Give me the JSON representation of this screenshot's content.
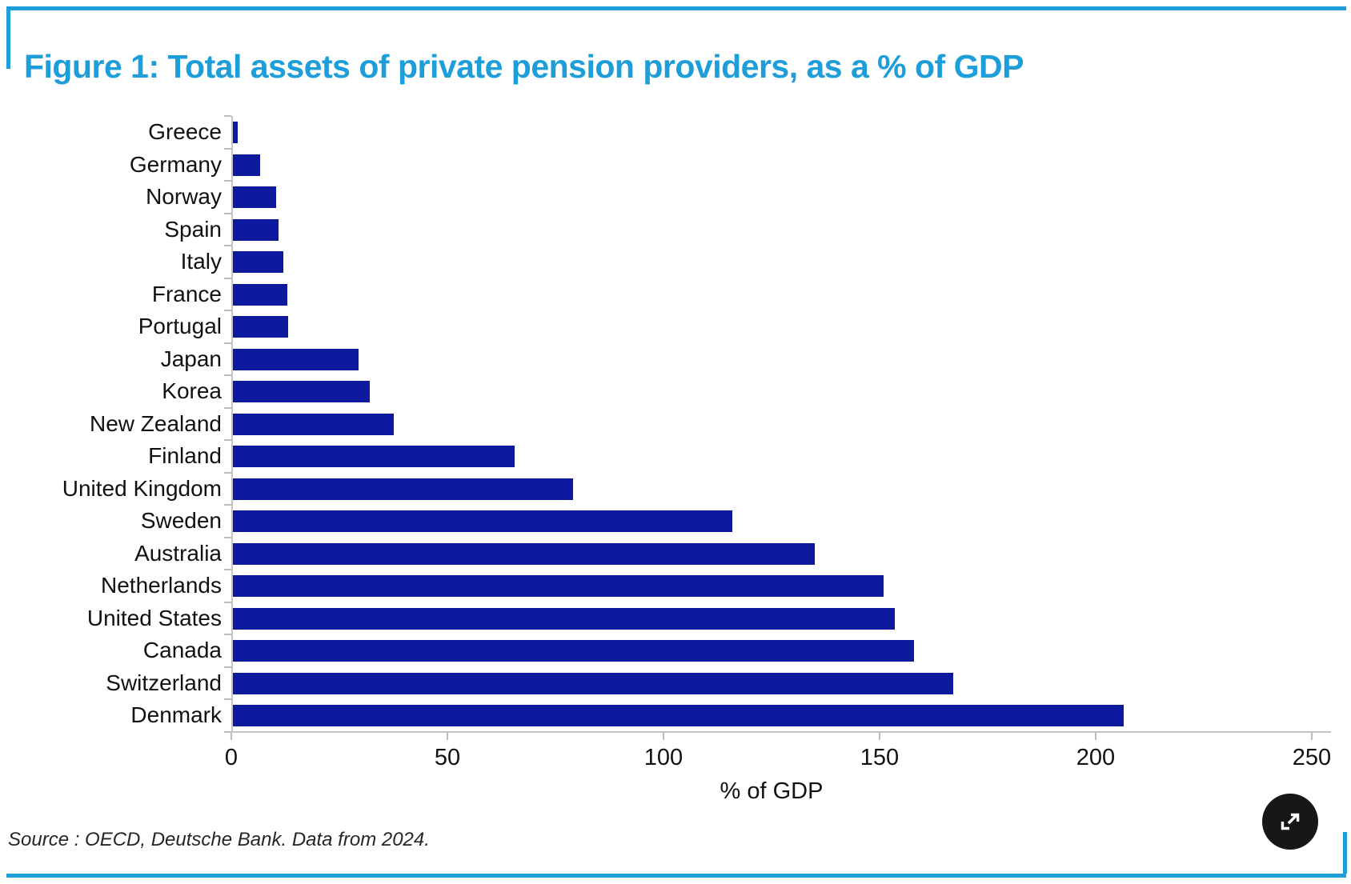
{
  "title": "Figure 1: Total assets of private pension providers, as a % of GDP",
  "source": "Source : OECD, Deutsche Bank. Data from 2024.",
  "colors": {
    "accent_blue": "#1d9dd9",
    "bar_navy": "#0d1a9e",
    "axis_gray": "#c4c4c4",
    "text": "#111111",
    "expand_button_bg": "#171717"
  },
  "expand_button": {
    "icon": "expand-icon"
  },
  "chart_data": {
    "type": "bar",
    "orientation": "horizontal",
    "title": "Figure 1: Total assets of private pension providers, as a % of GDP",
    "xlabel": "% of GDP",
    "ylabel": "",
    "xlim": [
      0,
      250
    ],
    "x_ticks": [
      0,
      50,
      100,
      150,
      200,
      250
    ],
    "grid": false,
    "legend": false,
    "bar_color": "#0d1a9e",
    "categories": [
      "Greece",
      "Germany",
      "Norway",
      "Spain",
      "Italy",
      "France",
      "Portugal",
      "Japan",
      "Korea",
      "New Zealand",
      "Finland",
      "United Kingdom",
      "Sweden",
      "Australia",
      "Netherlands",
      "United States",
      "Canada",
      "Switzerland",
      "Denmark"
    ],
    "values": [
      1.4,
      6.7,
      10.4,
      11,
      12,
      13,
      13.2,
      29.5,
      32,
      37.5,
      65.5,
      79,
      116,
      135,
      151,
      153.5,
      158,
      167,
      206.5
    ]
  }
}
